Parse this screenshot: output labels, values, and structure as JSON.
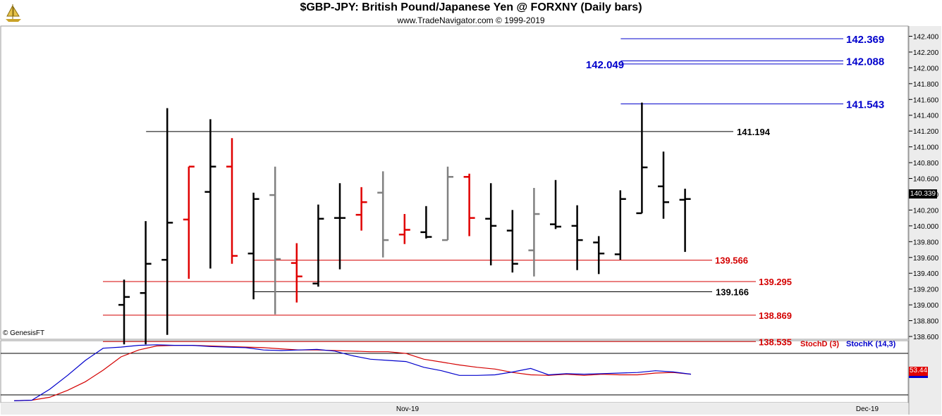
{
  "header": {
    "title": "$GBP-JPY:  British Pound/Japanese Yen @ FORXNY  (Daily bars)",
    "subtitle": "www.TradeNavigator.com © 1999-2019"
  },
  "watermark": "© GenesisFT",
  "colors": {
    "up_bar": "#000000",
    "down_bar": "#e00000",
    "inside_bar": "#808080",
    "resistance": "#0000cc",
    "support": "#d40000",
    "pivot": "#000000",
    "stoch_d": "#d40000",
    "stoch_k": "#0000cc"
  },
  "indicator_labels": {
    "stoch_d": "StochD (3)",
    "stoch_k": "StochK (14,3)"
  },
  "last_value_tag": "140.339",
  "stoch_value_tag": "53.44",
  "chart_data": {
    "type": "ohlc",
    "price_axis": {
      "min": 138.6,
      "max": 142.4,
      "ticks": [
        "138.600",
        "138.800",
        "139.000",
        "139.200",
        "139.400",
        "139.600",
        "139.800",
        "140.000",
        "140.200",
        "140.400",
        "140.600",
        "140.800",
        "141.000",
        "141.200",
        "141.400",
        "141.600",
        "141.800",
        "142.000",
        "142.200",
        "142.400"
      ]
    },
    "x_axis_labels": [
      "Nov-19",
      "Dec-19"
    ],
    "bars": [
      {
        "o": 139.0,
        "h": 139.32,
        "l": 138.5,
        "c": 139.1,
        "color": "black"
      },
      {
        "o": 139.15,
        "h": 140.06,
        "l": 138.5,
        "c": 139.52,
        "color": "black"
      },
      {
        "o": 139.57,
        "h": 141.49,
        "l": 138.62,
        "c": 140.04,
        "color": "black"
      },
      {
        "o": 140.08,
        "h": 140.75,
        "l": 139.33,
        "c": 140.75,
        "color": "red"
      },
      {
        "o": 140.43,
        "h": 141.35,
        "l": 139.46,
        "c": 140.75,
        "color": "black"
      },
      {
        "o": 140.75,
        "h": 141.11,
        "l": 139.52,
        "c": 139.62,
        "color": "red"
      },
      {
        "o": 139.65,
        "h": 140.42,
        "l": 139.07,
        "c": 140.34,
        "color": "black"
      },
      {
        "o": 140.39,
        "h": 140.75,
        "l": 138.88,
        "c": 139.58,
        "color": "gray"
      },
      {
        "o": 139.53,
        "h": 139.78,
        "l": 139.03,
        "c": 139.36,
        "color": "red"
      },
      {
        "o": 139.27,
        "h": 140.27,
        "l": 139.23,
        "c": 140.09,
        "color": "black"
      },
      {
        "o": 140.1,
        "h": 140.54,
        "l": 139.45,
        "c": 140.1,
        "color": "black"
      },
      {
        "o": 140.14,
        "h": 140.49,
        "l": 139.94,
        "c": 140.3,
        "color": "red"
      },
      {
        "o": 140.42,
        "h": 140.69,
        "l": 139.6,
        "c": 139.82,
        "color": "gray"
      },
      {
        "o": 139.89,
        "h": 140.15,
        "l": 139.77,
        "c": 139.95,
        "color": "red"
      },
      {
        "o": 139.92,
        "h": 140.25,
        "l": 139.84,
        "c": 139.86,
        "color": "black"
      },
      {
        "o": 139.82,
        "h": 140.75,
        "l": 139.82,
        "c": 140.62,
        "color": "gray"
      },
      {
        "o": 140.62,
        "h": 140.66,
        "l": 139.87,
        "c": 140.1,
        "color": "red"
      },
      {
        "o": 140.09,
        "h": 140.54,
        "l": 139.5,
        "c": 140.0,
        "color": "black"
      },
      {
        "o": 139.94,
        "h": 140.2,
        "l": 139.41,
        "c": 139.52,
        "color": "black"
      },
      {
        "o": 139.69,
        "h": 140.48,
        "l": 139.36,
        "c": 140.15,
        "color": "gray"
      },
      {
        "o": 140.02,
        "h": 140.58,
        "l": 139.96,
        "c": 139.99,
        "color": "black"
      },
      {
        "o": 140.0,
        "h": 140.26,
        "l": 139.44,
        "c": 139.82,
        "color": "black"
      },
      {
        "o": 139.79,
        "h": 139.87,
        "l": 139.39,
        "c": 139.65,
        "color": "black"
      },
      {
        "o": 139.64,
        "h": 140.45,
        "l": 139.57,
        "c": 140.34,
        "color": "black"
      },
      {
        "o": 140.16,
        "h": 141.56,
        "l": 140.16,
        "c": 140.74,
        "color": "black"
      },
      {
        "o": 140.5,
        "h": 140.94,
        "l": 140.09,
        "c": 140.3,
        "color": "black"
      },
      {
        "o": 140.33,
        "h": 140.47,
        "l": 139.67,
        "c": 140.34,
        "color": "black"
      }
    ],
    "levels": [
      {
        "value": 142.369,
        "label": "142.369",
        "color": "blue",
        "from_bar": 24
      },
      {
        "value": 142.088,
        "label": "142.088",
        "color": "blue",
        "from_bar": 24
      },
      {
        "value": 142.049,
        "label": "142.049",
        "color": "blue",
        "from_bar": 24,
        "label_side": "left"
      },
      {
        "value": 141.543,
        "label": "141.543",
        "color": "blue",
        "from_bar": 24
      },
      {
        "value": 141.194,
        "label": "141.194",
        "color": "black",
        "from_bar": 2
      },
      {
        "value": 139.566,
        "label": "139.566",
        "color": "red",
        "from_bar": 7
      },
      {
        "value": 139.295,
        "label": "139.295",
        "color": "red",
        "from_bar": 0
      },
      {
        "value": 139.166,
        "label": "139.166",
        "color": "black",
        "from_bar": 7
      },
      {
        "value": 138.869,
        "label": "138.869",
        "color": "red",
        "from_bar": 0
      },
      {
        "value": 138.535,
        "label": "138.535",
        "color": "red",
        "from_bar": 0
      }
    ],
    "stochastic": {
      "range": [
        0,
        100
      ],
      "stoch_d": [
        2,
        3,
        8,
        20,
        35,
        55,
        78,
        90,
        97,
        98,
        98,
        97,
        96,
        95,
        94,
        92,
        90,
        90,
        89,
        88,
        87,
        87,
        84,
        74,
        69,
        64,
        60,
        57,
        51,
        47,
        46,
        48,
        46,
        48,
        47,
        47,
        50,
        51,
        48
      ],
      "stoch_k": [
        2,
        3,
        22,
        46,
        72,
        93,
        95,
        98,
        99,
        98,
        98,
        96,
        95,
        94,
        90,
        89,
        90,
        91,
        88,
        80,
        74,
        72,
        70,
        60,
        54,
        46,
        46,
        47,
        52,
        58,
        47,
        49,
        48,
        49,
        50,
        51,
        54,
        52,
        48
      ]
    }
  }
}
